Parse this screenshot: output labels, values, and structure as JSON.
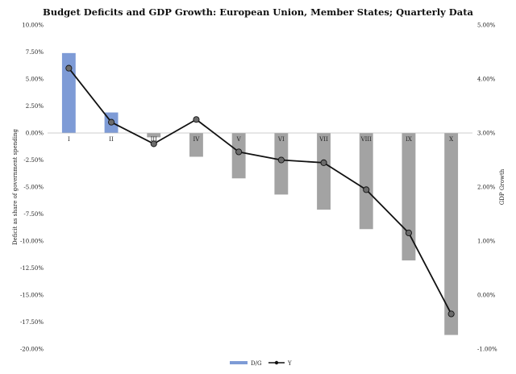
{
  "chart_data": {
    "type": "bar+line",
    "title": "Budget Deficits and GDP Growth: European Union, Member States; Quarterly Data",
    "categories": [
      "I",
      "II",
      "III",
      "IV",
      "V",
      "VI",
      "VII",
      "VIII",
      "IX",
      "X"
    ],
    "series": [
      {
        "name": "D/G",
        "kind": "bar",
        "axis": "left",
        "values": [
          7.4,
          1.9,
          -0.4,
          -2.2,
          -4.2,
          -5.7,
          -7.1,
          -8.9,
          -11.8,
          -18.7
        ]
      },
      {
        "name": "Y",
        "kind": "line",
        "axis": "right",
        "values": [
          4.2,
          3.2,
          2.8,
          3.25,
          2.65,
          2.5,
          2.45,
          1.95,
          1.15,
          -0.35
        ]
      }
    ],
    "left_axis": {
      "label": "Deficit as share of government spending",
      "ylim": [
        -20,
        10
      ],
      "ticks": [
        10,
        7.5,
        5,
        2.5,
        0,
        -2.5,
        -5,
        -7.5,
        -10,
        -12.5,
        -15,
        -17.5,
        -20
      ],
      "tick_labels": [
        "10.00%",
        "7.50%",
        "5.00%",
        "2.50%",
        "0.00%",
        "-2.50%",
        "-5.00%",
        "-7.50%",
        "-10.00%",
        "-12.50%",
        "-15.00%",
        "-17.50%",
        "-20.00%"
      ]
    },
    "right_axis": {
      "label": "GDP Growth",
      "ylim": [
        -1,
        5
      ],
      "ticks": [
        5,
        4,
        3,
        2,
        1,
        0,
        -1
      ],
      "tick_labels": [
        "5.00%",
        "4.00%",
        "3.00%",
        "2.00%",
        "1.00%",
        "0.00%",
        "-1.00%"
      ]
    },
    "legend": {
      "position": "bottom-center",
      "entries": [
        "D/G",
        "Y"
      ]
    },
    "colors": {
      "bar_positive": "#7e9bd6",
      "bar_negative": "#a3a3a3",
      "line": "#111111",
      "marker": "#6b6b6b"
    },
    "grid": false
  }
}
